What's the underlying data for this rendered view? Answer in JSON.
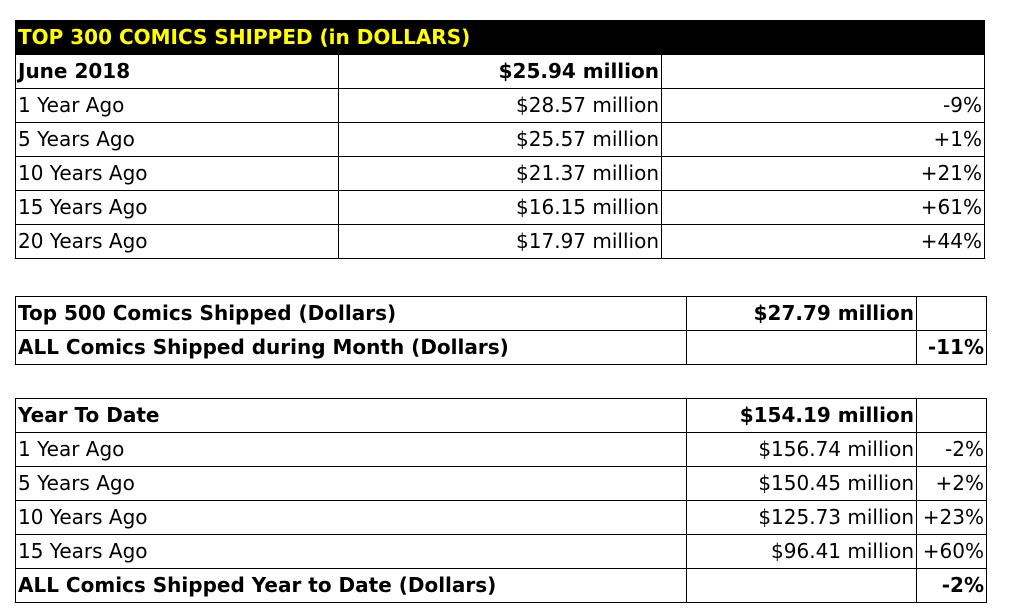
{
  "header": "TOP 300 COMICS SHIPPED (in DOLLARS)",
  "table1": {
    "rows": [
      {
        "label": "June 2018",
        "value": "$25.94 million",
        "pct": ""
      },
      {
        "label": "1 Year Ago",
        "value": "$28.57 million",
        "pct": "-9%"
      },
      {
        "label": "5 Years Ago",
        "value": "$25.57 million",
        "pct": "+1%"
      },
      {
        "label": "10 Years Ago",
        "value": "$21.37 million",
        "pct": "+21%"
      },
      {
        "label": "15 Years Ago",
        "value": "$16.15 million",
        "pct": "+61%"
      },
      {
        "label": "20 Years Ago",
        "value": "$17.97 million",
        "pct": "+44%"
      }
    ]
  },
  "table2": {
    "rows": [
      {
        "label": "Top 500 Comics Shipped (Dollars)",
        "value": "$27.79 million",
        "pct": ""
      },
      {
        "label": "ALL Comics Shipped during Month (Dollars)",
        "value": "",
        "pct": "-11%"
      }
    ]
  },
  "table3": {
    "rows": [
      {
        "label": "Year To Date",
        "value": "$154.19 million",
        "pct": ""
      },
      {
        "label": "1 Year Ago",
        "value": "$156.74 million",
        "pct": "-2%"
      },
      {
        "label": "5 Years Ago",
        "value": "$150.45 million",
        "pct": "+2%"
      },
      {
        "label": "10 Years Ago",
        "value": "$125.73 million",
        "pct": "+23%"
      },
      {
        "label": "15 Years Ago",
        "value": "$96.41 million",
        "pct": "+60%"
      },
      {
        "label": "ALL Comics Shipped Year to Date (Dollars)",
        "value": "",
        "pct": "-2%"
      }
    ]
  }
}
